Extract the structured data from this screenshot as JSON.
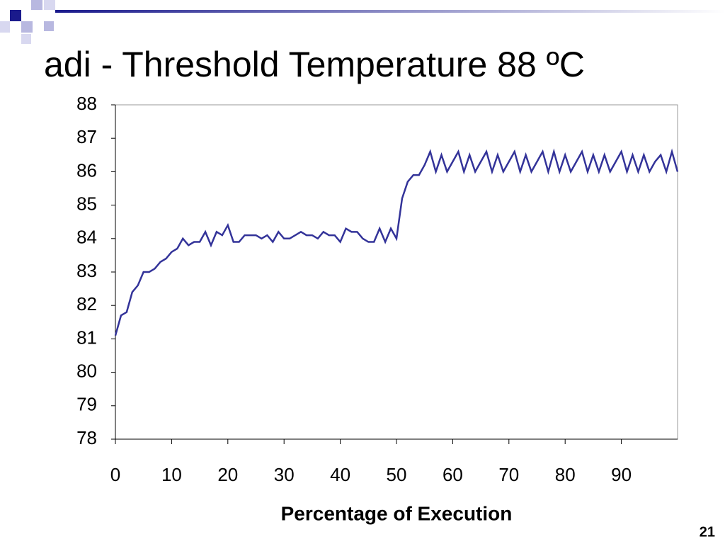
{
  "chart_data": {
    "type": "line",
    "title": "adi - Threshold Temperature 88 ºC",
    "xlabel": "Percentage of Execution",
    "page_number": "21",
    "x": [
      0,
      1,
      2,
      3,
      4,
      5,
      6,
      7,
      8,
      9,
      10,
      11,
      12,
      13,
      14,
      15,
      16,
      17,
      18,
      19,
      20,
      21,
      22,
      23,
      24,
      25,
      26,
      27,
      28,
      29,
      30,
      31,
      32,
      33,
      34,
      35,
      36,
      37,
      38,
      39,
      40,
      41,
      42,
      43,
      44,
      45,
      46,
      47,
      48,
      49,
      50,
      51,
      52,
      53,
      54,
      55,
      56,
      57,
      58,
      59,
      60,
      61,
      62,
      63,
      64,
      65,
      66,
      67,
      68,
      69,
      70,
      71,
      72,
      73,
      74,
      75,
      76,
      77,
      78,
      79,
      80,
      81,
      82,
      83,
      84,
      85,
      86,
      87,
      88,
      89,
      90,
      91,
      92,
      93,
      94,
      95,
      96,
      97,
      98,
      99,
      100
    ],
    "series": [
      {
        "name": "adi",
        "color": "#333399",
        "values": [
          81.1,
          81.7,
          81.8,
          82.4,
          82.6,
          83.0,
          83.0,
          83.1,
          83.3,
          83.4,
          83.6,
          83.7,
          84.0,
          83.8,
          83.9,
          83.9,
          84.2,
          83.8,
          84.2,
          84.1,
          84.4,
          83.9,
          83.9,
          84.1,
          84.1,
          84.1,
          84.0,
          84.1,
          83.9,
          84.2,
          84.0,
          84.0,
          84.1,
          84.2,
          84.1,
          84.1,
          84.0,
          84.2,
          84.1,
          84.1,
          83.9,
          84.3,
          84.2,
          84.2,
          84.0,
          83.9,
          83.9,
          84.3,
          83.9,
          84.3,
          84.0,
          85.2,
          85.7,
          85.9,
          85.9,
          86.2,
          86.6,
          86.0,
          86.5,
          86.0,
          86.3,
          86.6,
          86.0,
          86.5,
          86.0,
          86.3,
          86.6,
          86.0,
          86.5,
          86.0,
          86.3,
          86.6,
          86.0,
          86.5,
          86.0,
          86.3,
          86.6,
          86.0,
          86.6,
          86.0,
          86.5,
          86.0,
          86.3,
          86.6,
          86.0,
          86.5,
          86.0,
          86.5,
          86.0,
          86.3,
          86.6,
          86.0,
          86.5,
          86.0,
          86.5,
          86.0,
          86.3,
          86.5,
          86.0,
          86.6,
          86.0
        ]
      }
    ],
    "xlim": [
      0,
      100
    ],
    "xticks": [
      0,
      10,
      20,
      30,
      40,
      50,
      60,
      70,
      80,
      90
    ],
    "ylim": [
      78,
      88
    ],
    "yticks": [
      78,
      79,
      80,
      81,
      82,
      83,
      84,
      85,
      86,
      87,
      88
    ],
    "grid": false
  }
}
